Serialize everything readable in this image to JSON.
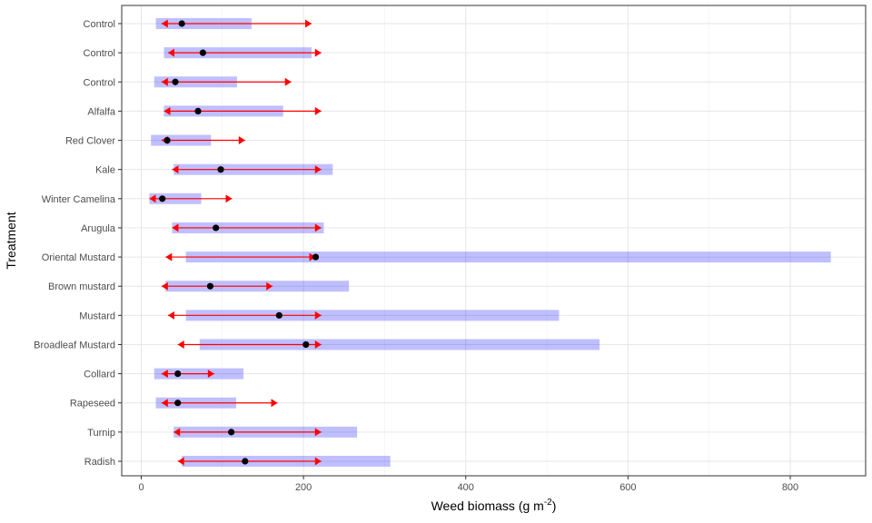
{
  "chart_data": {
    "type": "interval",
    "xlabel": "Weed biomass (g m",
    "xlabel_sup": "-2",
    "xlabel_suffix": ")",
    "ylabel": "Treatment",
    "xlim": [
      -25,
      890
    ],
    "xticks": [
      0,
      200,
      400,
      600,
      800
    ],
    "grid": true,
    "colors": {
      "bar": "#0000FF",
      "arrow": "#FF0000",
      "point": "#000000"
    },
    "rows": [
      {
        "label": "Control",
        "bar": [
          18,
          136
        ],
        "arrow": [
          25,
          210
        ],
        "point": 50
      },
      {
        "label": "Control",
        "bar": [
          28,
          210
        ],
        "arrow": [
          33,
          222
        ],
        "point": 76
      },
      {
        "label": "Control",
        "bar": [
          16,
          118
        ],
        "arrow": [
          25,
          185
        ],
        "point": 42
      },
      {
        "label": "Alfalfa",
        "bar": [
          28,
          175
        ],
        "arrow": [
          28,
          222
        ],
        "point": 70
      },
      {
        "label": "Red Clover",
        "bar": [
          12,
          86
        ],
        "arrow": [
          25,
          128
        ],
        "point": 32
      },
      {
        "label": "Kale",
        "bar": [
          40,
          236
        ],
        "arrow": [
          38,
          222
        ],
        "point": 98
      },
      {
        "label": "Winter Camelina",
        "bar": [
          10,
          74
        ],
        "arrow": [
          10,
          112
        ],
        "point": 26
      },
      {
        "label": "Arugula",
        "bar": [
          38,
          225
        ],
        "arrow": [
          38,
          222
        ],
        "point": 92
      },
      {
        "label": "Oriental Mustard",
        "bar": [
          55,
          850
        ],
        "arrow": [
          30,
          215
        ],
        "point": 215
      },
      {
        "label": "Brown mustard",
        "bar": [
          30,
          256
        ],
        "arrow": [
          25,
          162
        ],
        "point": 85
      },
      {
        "label": "Mustard",
        "bar": [
          55,
          515
        ],
        "arrow": [
          33,
          222
        ],
        "point": 170
      },
      {
        "label": "Broadleaf Mustard",
        "bar": [
          72,
          565
        ],
        "arrow": [
          45,
          222
        ],
        "point": 203
      },
      {
        "label": "Collard",
        "bar": [
          16,
          126
        ],
        "arrow": [
          25,
          90
        ],
        "point": 45
      },
      {
        "label": "Rapeseed",
        "bar": [
          18,
          117
        ],
        "arrow": [
          25,
          168
        ],
        "point": 45
      },
      {
        "label": "Turnip",
        "bar": [
          40,
          266
        ],
        "arrow": [
          40,
          222
        ],
        "point": 111
      },
      {
        "label": "Radish",
        "bar": [
          50,
          307
        ],
        "arrow": [
          45,
          222
        ],
        "point": 128
      }
    ]
  }
}
